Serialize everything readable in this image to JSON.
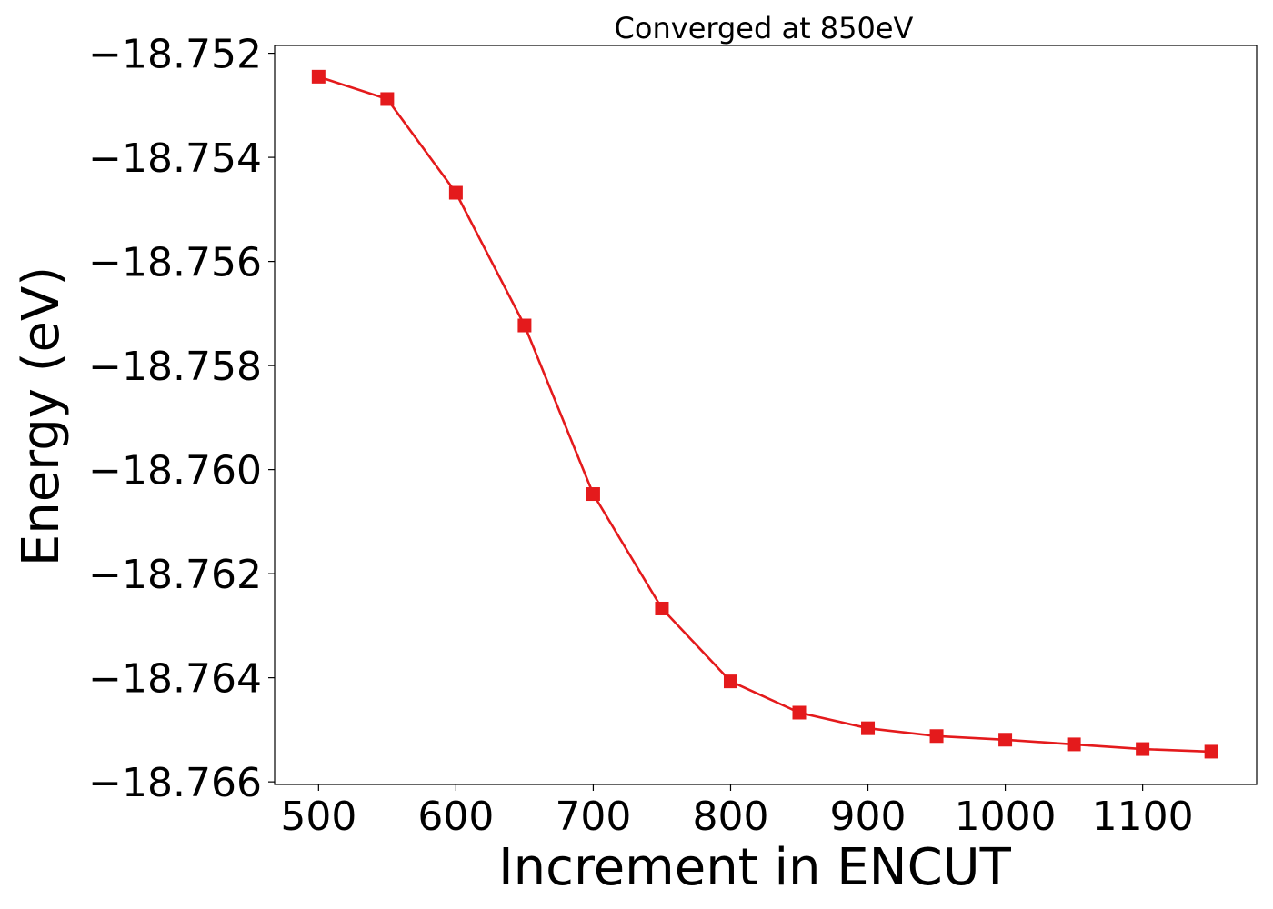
{
  "chart_data": {
    "type": "line",
    "title": "Converged at 850eV",
    "xlabel": "Increment in ENCUT",
    "ylabel": "Energy (eV)",
    "x": [
      500,
      550,
      600,
      650,
      700,
      750,
      800,
      850,
      900,
      950,
      1000,
      1050,
      1100,
      1150
    ],
    "series": [
      {
        "values": [
          -18.75245,
          -18.75288,
          -18.75468,
          -18.75723,
          -18.76047,
          -18.76267,
          -18.76407,
          -18.76467,
          -18.76497,
          -18.76512,
          -18.76519,
          -18.76528,
          -18.76537,
          -18.76542
        ],
        "color": "#e41a1c",
        "marker": "square"
      }
    ],
    "xlim": [
      468,
      1183
    ],
    "ylim": [
      -18.76605,
      -18.75185
    ],
    "xticks": [
      500,
      600,
      700,
      800,
      900,
      1000,
      1100
    ],
    "xtick_labels": [
      "500",
      "600",
      "700",
      "800",
      "900",
      "1000",
      "1100"
    ],
    "yticks": [
      -18.752,
      -18.754,
      -18.756,
      -18.758,
      -18.76,
      -18.762,
      -18.764,
      -18.766
    ],
    "ytick_labels": [
      "−18.752",
      "−18.754",
      "−18.756",
      "−18.758",
      "−18.760",
      "−18.762",
      "−18.764",
      "−18.766"
    ],
    "grid": false,
    "legend": "none"
  }
}
